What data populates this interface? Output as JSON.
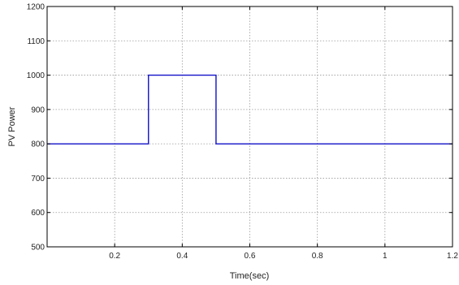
{
  "chart_data": {
    "type": "line",
    "title": "",
    "xlabel": "Time(sec)",
    "ylabel": "PV Power",
    "xlim": [
      0,
      1.2
    ],
    "ylim": [
      500,
      1200
    ],
    "xticks": [
      0.2,
      0.4,
      0.6,
      0.8,
      1,
      1.2
    ],
    "xtick_labels": [
      "0.2",
      "0.4",
      "0.6",
      "0.8",
      "1",
      "1.2"
    ],
    "yticks": [
      500,
      600,
      700,
      800,
      900,
      1000,
      1100,
      1200
    ],
    "ytick_labels": [
      "500",
      "600",
      "700",
      "800",
      "900",
      "1000",
      "1100",
      "1200"
    ],
    "grid": true,
    "grid_style": "dotted",
    "series": [
      {
        "color": "#1010c8",
        "x": [
          0,
          0.3,
          0.3,
          0.5,
          0.5,
          1.2
        ],
        "y": [
          800,
          800,
          1000,
          1000,
          800,
          800
        ]
      }
    ]
  }
}
